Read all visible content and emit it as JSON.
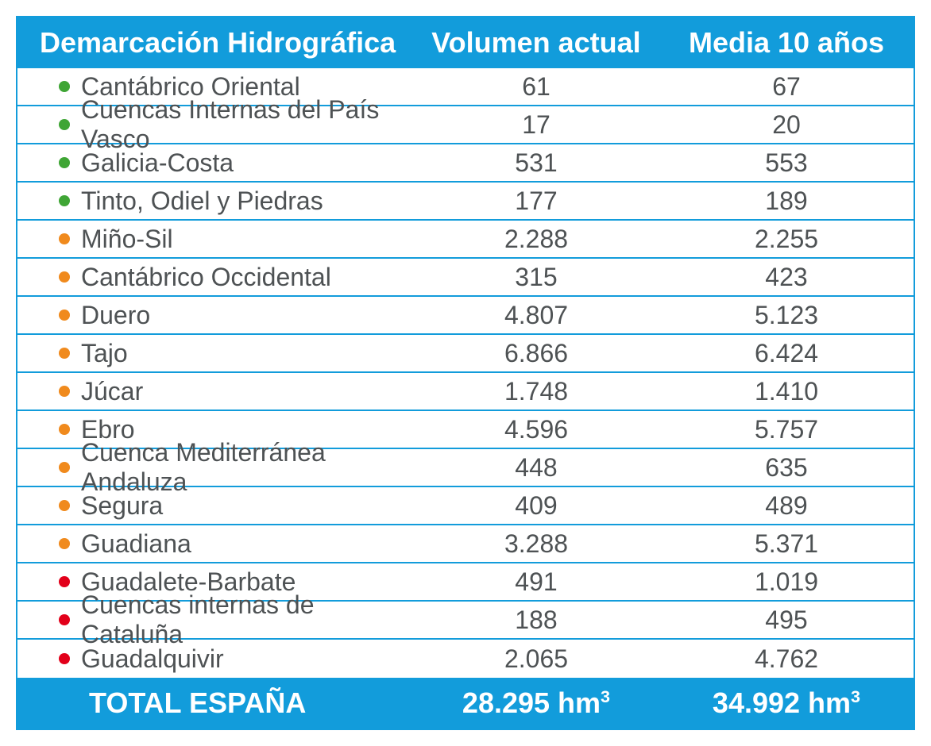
{
  "table": {
    "border_color": "#129cdb",
    "header_bg": "#129cdb",
    "header_text_color": "#ffffff",
    "body_text_color": "#4e5254",
    "row_divider_color": "#129cdb",
    "header_fontsize": 36,
    "body_fontsize": 32,
    "columns": {
      "name": {
        "label": "Demarcación Hidrográfica"
      },
      "actual": {
        "label": "Volumen actual"
      },
      "media": {
        "label": "Media 10 años"
      }
    },
    "bullet_colors": {
      "green": "#3fa535",
      "orange": "#f08a1d",
      "red": "#e2001a"
    },
    "rows": [
      {
        "bullet": "green",
        "name": "Cantábrico Oriental",
        "actual": "61",
        "media": "67"
      },
      {
        "bullet": "green",
        "name": "Cuencas Internas del País Vasco",
        "actual": "17",
        "media": "20"
      },
      {
        "bullet": "green",
        "name": "Galicia-Costa",
        "actual": "531",
        "media": "553"
      },
      {
        "bullet": "green",
        "name": "Tinto, Odiel y Piedras",
        "actual": "177",
        "media": "189"
      },
      {
        "bullet": "orange",
        "name": "Miño-Sil",
        "actual": "2.288",
        "media": "2.255"
      },
      {
        "bullet": "orange",
        "name": "Cantábrico Occidental",
        "actual": "315",
        "media": "423"
      },
      {
        "bullet": "orange",
        "name": "Duero",
        "actual": "4.807",
        "media": "5.123"
      },
      {
        "bullet": "orange",
        "name": "Tajo",
        "actual": "6.866",
        "media": "6.424"
      },
      {
        "bullet": "orange",
        "name": "Júcar",
        "actual": "1.748",
        "media": "1.410"
      },
      {
        "bullet": "orange",
        "name": "Ebro",
        "actual": "4.596",
        "media": "5.757"
      },
      {
        "bullet": "orange",
        "name": "Cuenca Mediterránea Andaluza",
        "actual": "448",
        "media": "635"
      },
      {
        "bullet": "orange",
        "name": "Segura",
        "actual": "409",
        "media": "489"
      },
      {
        "bullet": "orange",
        "name": "Guadiana",
        "actual": "3.288",
        "media": "5.371"
      },
      {
        "bullet": "red",
        "name": "Guadalete-Barbate",
        "actual": "491",
        "media": "1.019"
      },
      {
        "bullet": "red",
        "name": "Cuencas internas de Cataluña",
        "actual": "188",
        "media": "495"
      },
      {
        "bullet": "red",
        "name": "Guadalquivir",
        "actual": "2.065",
        "media": "4.762"
      }
    ],
    "footer": {
      "label": "TOTAL ESPAÑA",
      "actual_value": "28.295",
      "media_value": "34.992",
      "unit_html": "hm³"
    }
  }
}
